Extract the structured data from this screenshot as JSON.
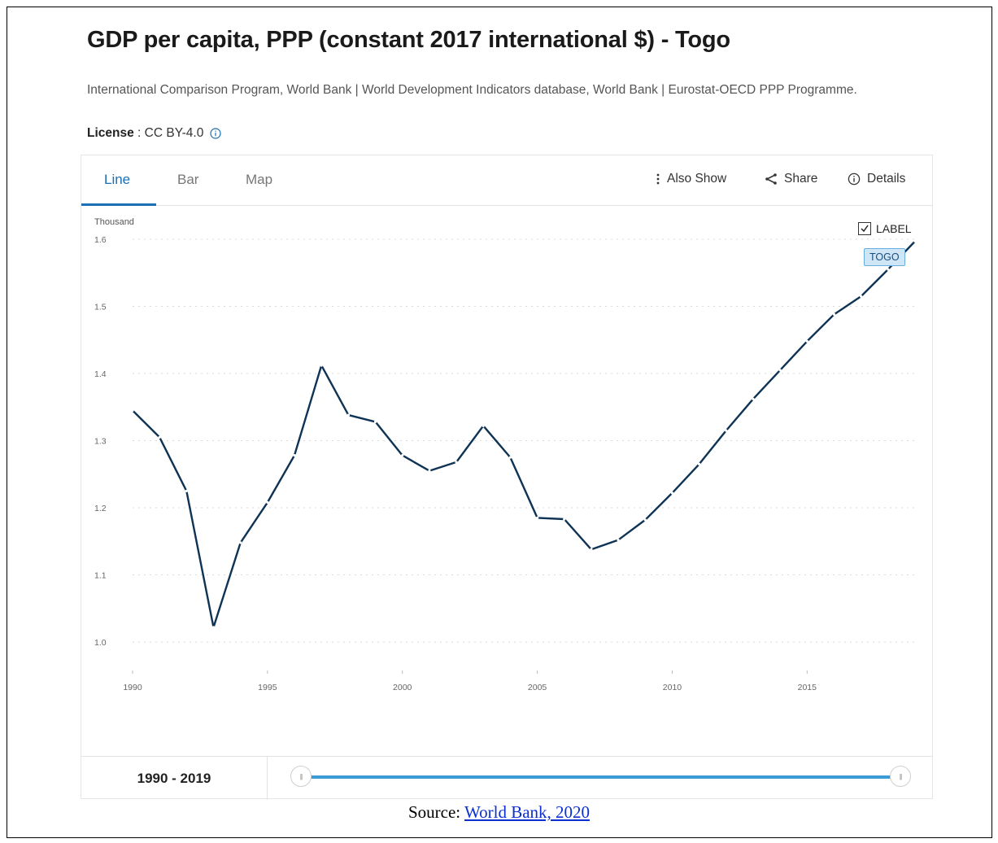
{
  "title": "GDP per capita, PPP (constant 2017 international $) - Togo",
  "sources": "International Comparison Program, World Bank | World Development Indicators database, World Bank | Eurostat-OECD PPP Programme.",
  "license": {
    "label": "License",
    "separator": " : ",
    "value": "CC BY-4.0",
    "icon": "info-icon"
  },
  "tabs": [
    {
      "label": "Line",
      "active": true
    },
    {
      "label": "Bar",
      "active": false
    },
    {
      "label": "Map",
      "active": false
    }
  ],
  "tools": {
    "also_show": {
      "label": "Also Show",
      "icon": "vertical-dots-icon"
    },
    "share": {
      "label": "Share",
      "icon": "share-icon"
    },
    "details": {
      "label": "Details",
      "icon": "info-icon"
    }
  },
  "label_toggle": {
    "label": "LABEL",
    "checked": true
  },
  "country_tag": "TOGO",
  "range": {
    "label": "1990 - 2019",
    "start": 1990,
    "end": 2019
  },
  "source": {
    "prefix": "Source: ",
    "link_text": "World Bank, 2020"
  },
  "colors": {
    "line": "#0e3354",
    "accent": "#1a6fb5",
    "slider": "#3a9bd6"
  },
  "chart_data": {
    "type": "line",
    "title": "",
    "ylabel": "Thousand",
    "xlabel": "",
    "ylim": [
      1.0,
      1.6
    ],
    "xlim": [
      1990,
      2019
    ],
    "yticks": [
      "1.0",
      "1.1",
      "1.2",
      "1.3",
      "1.4",
      "1.5",
      "1.6"
    ],
    "xticks": [
      "1990",
      "1995",
      "2000",
      "2005",
      "2010",
      "2015"
    ],
    "grid": "horizontal dotted",
    "series": [
      {
        "name": "TOGO",
        "x": [
          1990,
          1991,
          1992,
          1993,
          1994,
          1995,
          1996,
          1997,
          1998,
          1999,
          2000,
          2001,
          2002,
          2003,
          2004,
          2005,
          2006,
          2007,
          2008,
          2009,
          2010,
          2011,
          2012,
          2013,
          2014,
          2015,
          2016,
          2017,
          2018,
          2019
        ],
        "values": [
          1.345,
          1.305,
          1.225,
          1.022,
          1.148,
          1.208,
          1.278,
          1.412,
          1.338,
          1.328,
          1.278,
          1.255,
          1.268,
          1.322,
          1.275,
          1.185,
          1.183,
          1.138,
          1.152,
          1.182,
          1.222,
          1.265,
          1.315,
          1.362,
          1.405,
          1.448,
          1.488,
          1.515,
          1.555,
          1.597
        ]
      }
    ]
  }
}
